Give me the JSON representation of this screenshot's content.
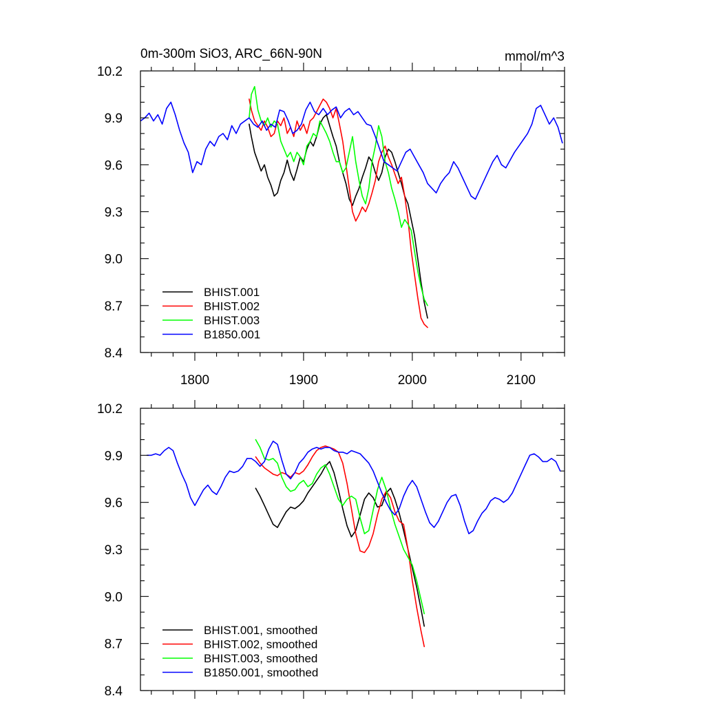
{
  "chart_data": [
    {
      "type": "line",
      "title_left": "0m-300m SiO3, ARC_66N-90N",
      "title_right": "mmol/m^3",
      "xlim": [
        1750,
        2140
      ],
      "ylim": [
        8.4,
        10.2
      ],
      "xticks": [
        1800,
        1900,
        2000,
        2100
      ],
      "xtick_labels": [
        "1800",
        "1900",
        "2000",
        "2100"
      ],
      "xtick_labels_visible": true,
      "yticks": [
        8.4,
        8.7,
        9.0,
        9.3,
        9.6,
        9.9,
        10.2
      ],
      "ytick_labels": [
        "8.4",
        "8.7",
        "9.0",
        "9.3",
        "9.6",
        "9.9",
        "10.2"
      ],
      "legend_position": "bottom-left",
      "series": [
        {
          "name": "BHIST.001",
          "color": "#000000",
          "x": [
            1850,
            1852,
            1855,
            1858,
            1861,
            1864,
            1867,
            1870,
            1873,
            1876,
            1879,
            1882,
            1885,
            1888,
            1891,
            1894,
            1897,
            1900,
            1903,
            1906,
            1909,
            1912,
            1915,
            1918,
            1921,
            1924,
            1927,
            1930,
            1933,
            1936,
            1939,
            1942,
            1945,
            1948,
            1951,
            1954,
            1957,
            1960,
            1963,
            1966,
            1969,
            1972,
            1975,
            1978,
            1981,
            1984,
            1987,
            1990,
            1993,
            1996,
            1999,
            2002,
            2005,
            2008,
            2011,
            2014
          ],
          "values": [
            9.86,
            9.78,
            9.68,
            9.62,
            9.56,
            9.6,
            9.52,
            9.47,
            9.4,
            9.42,
            9.5,
            9.55,
            9.63,
            9.55,
            9.5,
            9.57,
            9.65,
            9.62,
            9.7,
            9.75,
            9.72,
            9.78,
            9.86,
            9.9,
            9.92,
            9.85,
            9.78,
            9.72,
            9.62,
            9.55,
            9.48,
            9.38,
            9.34,
            9.4,
            9.45,
            9.52,
            9.58,
            9.65,
            9.62,
            9.55,
            9.5,
            9.55,
            9.65,
            9.7,
            9.68,
            9.62,
            9.55,
            9.48,
            9.4,
            9.35,
            9.25,
            9.15,
            9.0,
            8.85,
            8.72,
            8.62
          ]
        },
        {
          "name": "BHIST.002",
          "color": "#ff0000",
          "x": [
            1850,
            1852,
            1855,
            1858,
            1861,
            1864,
            1867,
            1870,
            1873,
            1876,
            1879,
            1882,
            1885,
            1888,
            1891,
            1894,
            1897,
            1900,
            1903,
            1906,
            1909,
            1912,
            1915,
            1918,
            1921,
            1924,
            1927,
            1930,
            1933,
            1936,
            1939,
            1942,
            1945,
            1948,
            1951,
            1954,
            1957,
            1960,
            1963,
            1966,
            1969,
            1972,
            1975,
            1978,
            1981,
            1984,
            1987,
            1990,
            1993,
            1996,
            1999,
            2002,
            2005,
            2008,
            2011,
            2014
          ],
          "values": [
            10.02,
            9.95,
            9.88,
            9.85,
            9.82,
            9.88,
            9.84,
            9.78,
            9.8,
            9.88,
            9.85,
            9.9,
            9.8,
            9.84,
            9.78,
            9.88,
            9.82,
            9.86,
            9.8,
            9.88,
            9.9,
            9.94,
            9.98,
            10.02,
            10.0,
            9.96,
            9.9,
            9.96,
            9.86,
            9.75,
            9.6,
            9.45,
            9.3,
            9.24,
            9.28,
            9.33,
            9.3,
            9.35,
            9.42,
            9.5,
            9.62,
            9.68,
            9.72,
            9.65,
            9.6,
            9.54,
            9.48,
            9.52,
            9.4,
            9.25,
            9.05,
            8.9,
            8.75,
            8.62,
            8.58,
            8.56
          ]
        },
        {
          "name": "BHIST.003",
          "color": "#00ff00",
          "x": [
            1850,
            1852,
            1855,
            1858,
            1861,
            1864,
            1867,
            1870,
            1873,
            1876,
            1879,
            1882,
            1885,
            1888,
            1891,
            1894,
            1897,
            1900,
            1903,
            1906,
            1909,
            1912,
            1915,
            1918,
            1921,
            1924,
            1927,
            1930,
            1933,
            1936,
            1939,
            1942,
            1945,
            1948,
            1951,
            1954,
            1957,
            1960,
            1963,
            1966,
            1969,
            1972,
            1975,
            1978,
            1981,
            1984,
            1987,
            1990,
            1993,
            1996,
            1999,
            2002,
            2005,
            2008,
            2011,
            2014
          ],
          "values": [
            9.9,
            10.05,
            10.1,
            9.95,
            9.88,
            9.85,
            9.9,
            9.84,
            9.88,
            9.86,
            9.75,
            9.7,
            9.65,
            9.68,
            9.62,
            9.68,
            9.65,
            9.6,
            9.72,
            9.75,
            9.8,
            9.78,
            9.88,
            9.84,
            9.8,
            9.75,
            9.68,
            9.62,
            9.62,
            9.55,
            9.58,
            9.68,
            9.78,
            9.62,
            9.5,
            9.4,
            9.35,
            9.45,
            9.62,
            9.72,
            9.85,
            9.78,
            9.62,
            9.55,
            9.45,
            9.38,
            9.3,
            9.2,
            9.25,
            9.22,
            9.18,
            9.05,
            8.92,
            8.82,
            8.74,
            8.7
          ]
        },
        {
          "name": "B1850.001",
          "color": "#0000ff",
          "x": [
            1750,
            1754,
            1758,
            1762,
            1766,
            1770,
            1774,
            1778,
            1782,
            1786,
            1790,
            1794,
            1798,
            1802,
            1806,
            1810,
            1814,
            1818,
            1822,
            1826,
            1830,
            1834,
            1838,
            1842,
            1846,
            1850,
            1854,
            1858,
            1862,
            1866,
            1870,
            1874,
            1878,
            1882,
            1886,
            1890,
            1894,
            1898,
            1902,
            1906,
            1910,
            1914,
            1918,
            1922,
            1926,
            1930,
            1934,
            1938,
            1942,
            1946,
            1950,
            1954,
            1958,
            1962,
            1966,
            1970,
            1974,
            1978,
            1982,
            1986,
            1990,
            1994,
            1998,
            2002,
            2006,
            2010,
            2014,
            2018,
            2022,
            2026,
            2030,
            2034,
            2038,
            2042,
            2046,
            2050,
            2054,
            2058,
            2062,
            2066,
            2070,
            2074,
            2078,
            2082,
            2086,
            2090,
            2094,
            2098,
            2102,
            2106,
            2110,
            2114,
            2118,
            2122,
            2126,
            2130,
            2134,
            2138
          ],
          "values": [
            9.88,
            9.9,
            9.93,
            9.88,
            9.92,
            9.86,
            9.96,
            10.0,
            9.92,
            9.82,
            9.74,
            9.68,
            9.55,
            9.62,
            9.6,
            9.7,
            9.75,
            9.72,
            9.78,
            9.8,
            9.76,
            9.85,
            9.8,
            9.86,
            9.88,
            9.9,
            9.86,
            9.84,
            9.88,
            9.82,
            9.86,
            9.84,
            9.95,
            9.94,
            9.88,
            9.8,
            9.82,
            9.86,
            9.95,
            10.0,
            9.94,
            9.92,
            9.96,
            9.92,
            9.95,
            9.97,
            9.9,
            9.94,
            9.96,
            9.92,
            9.94,
            9.9,
            9.86,
            9.85,
            9.78,
            9.7,
            9.62,
            9.6,
            9.58,
            9.56,
            9.62,
            9.68,
            9.7,
            9.65,
            9.6,
            9.55,
            9.48,
            9.45,
            9.42,
            9.48,
            9.52,
            9.55,
            9.62,
            9.58,
            9.52,
            9.46,
            9.4,
            9.38,
            9.44,
            9.5,
            9.56,
            9.62,
            9.66,
            9.6,
            9.58,
            9.63,
            9.68,
            9.72,
            9.76,
            9.8,
            9.86,
            9.96,
            9.98,
            9.92,
            9.86,
            9.9,
            9.84,
            9.74
          ]
        }
      ]
    },
    {
      "type": "line",
      "xlim": [
        1750,
        2140
      ],
      "ylim": [
        8.4,
        10.2
      ],
      "xticks": [
        1800,
        1900,
        2000,
        2100
      ],
      "xtick_labels_visible": false,
      "yticks": [
        8.4,
        8.7,
        9.0,
        9.3,
        9.6,
        9.9,
        10.2
      ],
      "ytick_labels": [
        "8.4",
        "8.7",
        "9.0",
        "9.3",
        "9.6",
        "9.9",
        "10.2"
      ],
      "legend_position": "bottom-left",
      "series": [
        {
          "name": "BHIST.001, smoothed",
          "color": "#000000",
          "x": [
            1856,
            1860,
            1864,
            1868,
            1872,
            1876,
            1880,
            1884,
            1888,
            1892,
            1896,
            1900,
            1904,
            1908,
            1912,
            1916,
            1920,
            1924,
            1928,
            1932,
            1936,
            1940,
            1944,
            1948,
            1952,
            1956,
            1960,
            1964,
            1968,
            1972,
            1976,
            1980,
            1984,
            1988,
            1992,
            1996,
            2000,
            2004,
            2008,
            2011
          ],
          "values": [
            9.69,
            9.64,
            9.58,
            9.52,
            9.46,
            9.44,
            9.49,
            9.54,
            9.57,
            9.56,
            9.58,
            9.61,
            9.66,
            9.7,
            9.74,
            9.78,
            9.83,
            9.86,
            9.79,
            9.68,
            9.56,
            9.45,
            9.38,
            9.42,
            9.52,
            9.62,
            9.66,
            9.63,
            9.57,
            9.58,
            9.66,
            9.69,
            9.62,
            9.53,
            9.42,
            9.3,
            9.18,
            9.06,
            8.92,
            8.81
          ]
        },
        {
          "name": "BHIST.002, smoothed",
          "color": "#ff0000",
          "x": [
            1856,
            1860,
            1864,
            1868,
            1872,
            1876,
            1880,
            1884,
            1888,
            1892,
            1896,
            1900,
            1904,
            1908,
            1912,
            1916,
            1920,
            1924,
            1928,
            1932,
            1936,
            1940,
            1944,
            1948,
            1952,
            1956,
            1960,
            1964,
            1968,
            1972,
            1976,
            1980,
            1984,
            1988,
            1992,
            1996,
            2000,
            2004,
            2008,
            2011
          ],
          "values": [
            9.89,
            9.85,
            9.82,
            9.8,
            9.78,
            9.77,
            9.79,
            9.78,
            9.76,
            9.79,
            9.78,
            9.8,
            9.84,
            9.89,
            9.93,
            9.95,
            9.96,
            9.95,
            9.94,
            9.92,
            9.85,
            9.72,
            9.56,
            9.4,
            9.29,
            9.28,
            9.32,
            9.4,
            9.52,
            9.62,
            9.67,
            9.63,
            9.54,
            9.48,
            9.46,
            9.3,
            9.1,
            8.93,
            8.78,
            8.68
          ]
        },
        {
          "name": "BHIST.003, smoothed",
          "color": "#00ff00",
          "x": [
            1856,
            1860,
            1864,
            1868,
            1872,
            1876,
            1880,
            1884,
            1888,
            1892,
            1896,
            1900,
            1904,
            1908,
            1912,
            1916,
            1920,
            1924,
            1928,
            1932,
            1936,
            1940,
            1944,
            1948,
            1952,
            1956,
            1960,
            1964,
            1968,
            1972,
            1976,
            1980,
            1984,
            1988,
            1992,
            1996,
            2000,
            2004,
            2008,
            2011
          ],
          "values": [
            10.0,
            9.95,
            9.88,
            9.87,
            9.88,
            9.85,
            9.76,
            9.7,
            9.67,
            9.68,
            9.72,
            9.74,
            9.7,
            9.72,
            9.78,
            9.82,
            9.84,
            9.78,
            9.7,
            9.62,
            9.58,
            9.62,
            9.64,
            9.62,
            9.5,
            9.4,
            9.42,
            9.55,
            9.68,
            9.76,
            9.68,
            9.56,
            9.46,
            9.38,
            9.3,
            9.25,
            9.2,
            9.1,
            8.98,
            8.89
          ]
        },
        {
          "name": "B1850.001, smoothed",
          "color": "#0000ff",
          "x": [
            1756,
            1760,
            1764,
            1768,
            1772,
            1776,
            1780,
            1784,
            1788,
            1792,
            1796,
            1800,
            1804,
            1808,
            1812,
            1816,
            1820,
            1824,
            1828,
            1832,
            1836,
            1840,
            1844,
            1848,
            1852,
            1856,
            1860,
            1864,
            1868,
            1872,
            1876,
            1880,
            1884,
            1888,
            1892,
            1896,
            1900,
            1904,
            1908,
            1912,
            1916,
            1920,
            1924,
            1928,
            1932,
            1936,
            1940,
            1944,
            1948,
            1952,
            1956,
            1960,
            1964,
            1968,
            1972,
            1976,
            1980,
            1984,
            1988,
            1992,
            1996,
            2000,
            2004,
            2008,
            2012,
            2016,
            2020,
            2024,
            2028,
            2032,
            2036,
            2040,
            2044,
            2048,
            2052,
            2056,
            2060,
            2064,
            2068,
            2072,
            2076,
            2080,
            2084,
            2088,
            2092,
            2096,
            2100,
            2104,
            2108,
            2112,
            2116,
            2120,
            2124,
            2128,
            2132,
            2136
          ],
          "values": [
            9.9,
            9.9,
            9.91,
            9.9,
            9.93,
            9.95,
            9.93,
            9.85,
            9.78,
            9.72,
            9.63,
            9.58,
            9.63,
            9.68,
            9.71,
            9.67,
            9.65,
            9.7,
            9.76,
            9.8,
            9.79,
            9.8,
            9.83,
            9.88,
            9.88,
            9.86,
            9.83,
            9.86,
            9.94,
            9.99,
            9.97,
            9.87,
            9.78,
            9.75,
            9.79,
            9.85,
            9.88,
            9.92,
            9.94,
            9.95,
            9.94,
            9.95,
            9.95,
            9.93,
            9.92,
            9.92,
            9.91,
            9.93,
            9.92,
            9.91,
            9.88,
            9.85,
            9.8,
            9.73,
            9.66,
            9.6,
            9.55,
            9.52,
            9.56,
            9.64,
            9.7,
            9.74,
            9.7,
            9.62,
            9.54,
            9.47,
            9.44,
            9.48,
            9.54,
            9.6,
            9.64,
            9.65,
            9.58,
            9.48,
            9.4,
            9.42,
            9.48,
            9.53,
            9.56,
            9.61,
            9.63,
            9.62,
            9.6,
            9.62,
            9.66,
            9.72,
            9.78,
            9.84,
            9.9,
            9.91,
            9.89,
            9.86,
            9.86,
            9.88,
            9.86,
            9.8
          ]
        }
      ]
    }
  ]
}
